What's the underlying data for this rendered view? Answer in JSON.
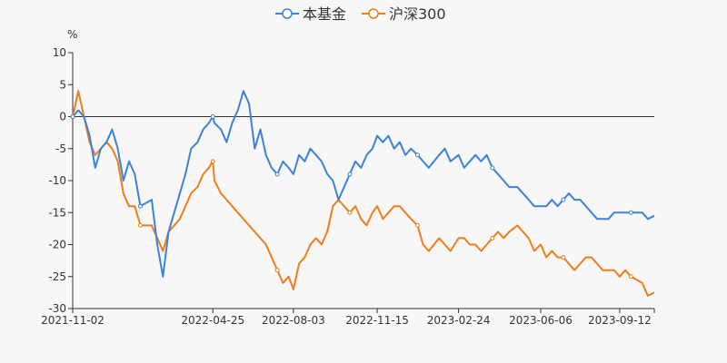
{
  "chart_data": {
    "type": "line",
    "title": "",
    "xlabel": "",
    "ylabel": "%",
    "ylim": [
      -30,
      10
    ],
    "y_ticks": [
      10,
      5,
      0,
      -5,
      -10,
      -15,
      -20,
      -25,
      -30
    ],
    "x_range": [
      "2021-11-02",
      "2023-10-25"
    ],
    "x_tick_labels": [
      "2021-11-02",
      "2022-04-25",
      "2022-08-03",
      "2022-11-15",
      "2023-02-24",
      "2023-06-06",
      "2023-09-12"
    ],
    "grid": false,
    "legend": "top-center",
    "series": [
      {
        "name": "本基金",
        "color": "#3b82d8",
        "x": [
          "2021-11-02",
          "2021-11-09",
          "2021-11-16",
          "2021-11-23",
          "2021-11-30",
          "2021-12-07",
          "2021-12-14",
          "2021-12-21",
          "2021-12-28",
          "2022-01-04",
          "2022-01-11",
          "2022-01-18",
          "2022-01-25",
          "2022-02-08",
          "2022-02-15",
          "2022-02-22",
          "2022-03-01",
          "2022-03-08",
          "2022-03-15",
          "2022-03-22",
          "2022-03-29",
          "2022-04-06",
          "2022-04-13",
          "2022-04-20",
          "2022-04-25",
          "2022-04-27",
          "2022-05-05",
          "2022-05-12",
          "2022-05-19",
          "2022-05-26",
          "2022-06-02",
          "2022-06-09",
          "2022-06-16",
          "2022-06-23",
          "2022-06-30",
          "2022-07-07",
          "2022-07-14",
          "2022-07-21",
          "2022-07-28",
          "2022-08-03",
          "2022-08-10",
          "2022-08-17",
          "2022-08-24",
          "2022-08-31",
          "2022-09-07",
          "2022-09-14",
          "2022-09-21",
          "2022-09-28",
          "2022-10-12",
          "2022-10-19",
          "2022-10-26",
          "2022-11-02",
          "2022-11-09",
          "2022-11-15",
          "2022-11-22",
          "2022-11-29",
          "2022-12-06",
          "2022-12-13",
          "2022-12-20",
          "2022-12-27",
          "2023-01-04",
          "2023-01-11",
          "2023-01-18",
          "2023-01-31",
          "2023-02-07",
          "2023-02-14",
          "2023-02-24",
          "2023-03-03",
          "2023-03-10",
          "2023-03-17",
          "2023-03-24",
          "2023-03-31",
          "2023-04-07",
          "2023-04-14",
          "2023-04-21",
          "2023-04-28",
          "2023-05-08",
          "2023-05-15",
          "2023-05-22",
          "2023-05-29",
          "2023-06-06",
          "2023-06-13",
          "2023-06-20",
          "2023-06-27",
          "2023-07-04",
          "2023-07-11",
          "2023-07-18",
          "2023-07-25",
          "2023-08-01",
          "2023-08-08",
          "2023-08-15",
          "2023-08-22",
          "2023-08-29",
          "2023-09-05",
          "2023-09-12",
          "2023-09-19",
          "2023-09-26",
          "2023-10-10",
          "2023-10-17",
          "2023-10-25"
        ],
        "values": [
          0,
          1,
          0,
          -3,
          -8,
          -5,
          -4,
          -2,
          -5,
          -10,
          -7,
          -9,
          -14,
          -13,
          -20,
          -25,
          -18,
          -15,
          -12,
          -9,
          -5,
          -4,
          -2,
          -1,
          0,
          -1,
          -2,
          -4,
          -1,
          1,
          4,
          2,
          -5,
          -2,
          -6,
          -8,
          -9,
          -7,
          -8,
          -9,
          -6,
          -7,
          -5,
          -6,
          -7,
          -9,
          -10,
          -13,
          -9,
          -7,
          -8,
          -6,
          -5,
          -3,
          -4,
          -3,
          -5,
          -4,
          -6,
          -5,
          -6,
          -7,
          -8,
          -6,
          -5,
          -7,
          -6,
          -8,
          -7,
          -6,
          -7,
          -6,
          -8,
          -9,
          -10,
          -11,
          -11,
          -12,
          -13,
          -14,
          -14,
          -14,
          -13,
          -14,
          -13,
          -12,
          -13,
          -13,
          -14,
          -15,
          -16,
          -16,
          -16,
          -15,
          -15,
          -15,
          -15,
          -15,
          -16,
          -15.5
        ]
      },
      {
        "name": "沪深300",
        "color": "#f07d19",
        "x": [
          "2021-11-02",
          "2021-11-09",
          "2021-11-16",
          "2021-11-23",
          "2021-11-30",
          "2021-12-07",
          "2021-12-14",
          "2021-12-21",
          "2021-12-28",
          "2022-01-04",
          "2022-01-11",
          "2022-01-18",
          "2022-01-25",
          "2022-02-08",
          "2022-02-15",
          "2022-02-22",
          "2022-03-01",
          "2022-03-08",
          "2022-03-15",
          "2022-03-22",
          "2022-03-29",
          "2022-04-06",
          "2022-04-13",
          "2022-04-20",
          "2022-04-25",
          "2022-04-27",
          "2022-05-05",
          "2022-05-12",
          "2022-05-19",
          "2022-05-26",
          "2022-06-02",
          "2022-06-09",
          "2022-06-16",
          "2022-06-23",
          "2022-06-30",
          "2022-07-07",
          "2022-07-14",
          "2022-07-21",
          "2022-07-28",
          "2022-08-03",
          "2022-08-10",
          "2022-08-17",
          "2022-08-24",
          "2022-08-31",
          "2022-09-07",
          "2022-09-14",
          "2022-09-21",
          "2022-09-28",
          "2022-10-12",
          "2022-10-19",
          "2022-10-26",
          "2022-11-02",
          "2022-11-09",
          "2022-11-15",
          "2022-11-22",
          "2022-11-29",
          "2022-12-06",
          "2022-12-13",
          "2022-12-20",
          "2022-12-27",
          "2023-01-04",
          "2023-01-11",
          "2023-01-18",
          "2023-01-31",
          "2023-02-07",
          "2023-02-14",
          "2023-02-24",
          "2023-03-03",
          "2023-03-10",
          "2023-03-17",
          "2023-03-24",
          "2023-03-31",
          "2023-04-07",
          "2023-04-14",
          "2023-04-21",
          "2023-04-28",
          "2023-05-08",
          "2023-05-15",
          "2023-05-22",
          "2023-05-29",
          "2023-06-06",
          "2023-06-13",
          "2023-06-20",
          "2023-06-27",
          "2023-07-04",
          "2023-07-11",
          "2023-07-18",
          "2023-07-25",
          "2023-08-01",
          "2023-08-08",
          "2023-08-15",
          "2023-08-22",
          "2023-08-29",
          "2023-09-05",
          "2023-09-12",
          "2023-09-19",
          "2023-09-26",
          "2023-10-10",
          "2023-10-17",
          "2023-10-25"
        ],
        "values": [
          0,
          4,
          0,
          -4,
          -6,
          -5,
          -4,
          -5,
          -7,
          -12,
          -14,
          -14,
          -17,
          -17,
          -19,
          -21,
          -18,
          -17,
          -16,
          -14,
          -12,
          -11,
          -9,
          -8,
          -7,
          -10,
          -12,
          -13,
          -14,
          -15,
          -16,
          -17,
          -18,
          -19,
          -20,
          -22,
          -24,
          -26,
          -25,
          -27,
          -23,
          -22,
          -20,
          -19,
          -20,
          -18,
          -14,
          -13,
          -15,
          -14,
          -16,
          -17,
          -15,
          -14,
          -16,
          -15,
          -14,
          -14,
          -15,
          -16,
          -17,
          -20,
          -21,
          -19,
          -20,
          -21,
          -19,
          -19,
          -20,
          -20,
          -21,
          -20,
          -19,
          -18,
          -19,
          -18,
          -17,
          -18,
          -19,
          -21,
          -20,
          -22,
          -21,
          -22,
          -22,
          -23,
          -24,
          -23,
          -22,
          -22,
          -23,
          -24,
          -24,
          -24,
          -25,
          -24,
          -25,
          -26,
          -28,
          -27.5
        ]
      }
    ]
  }
}
